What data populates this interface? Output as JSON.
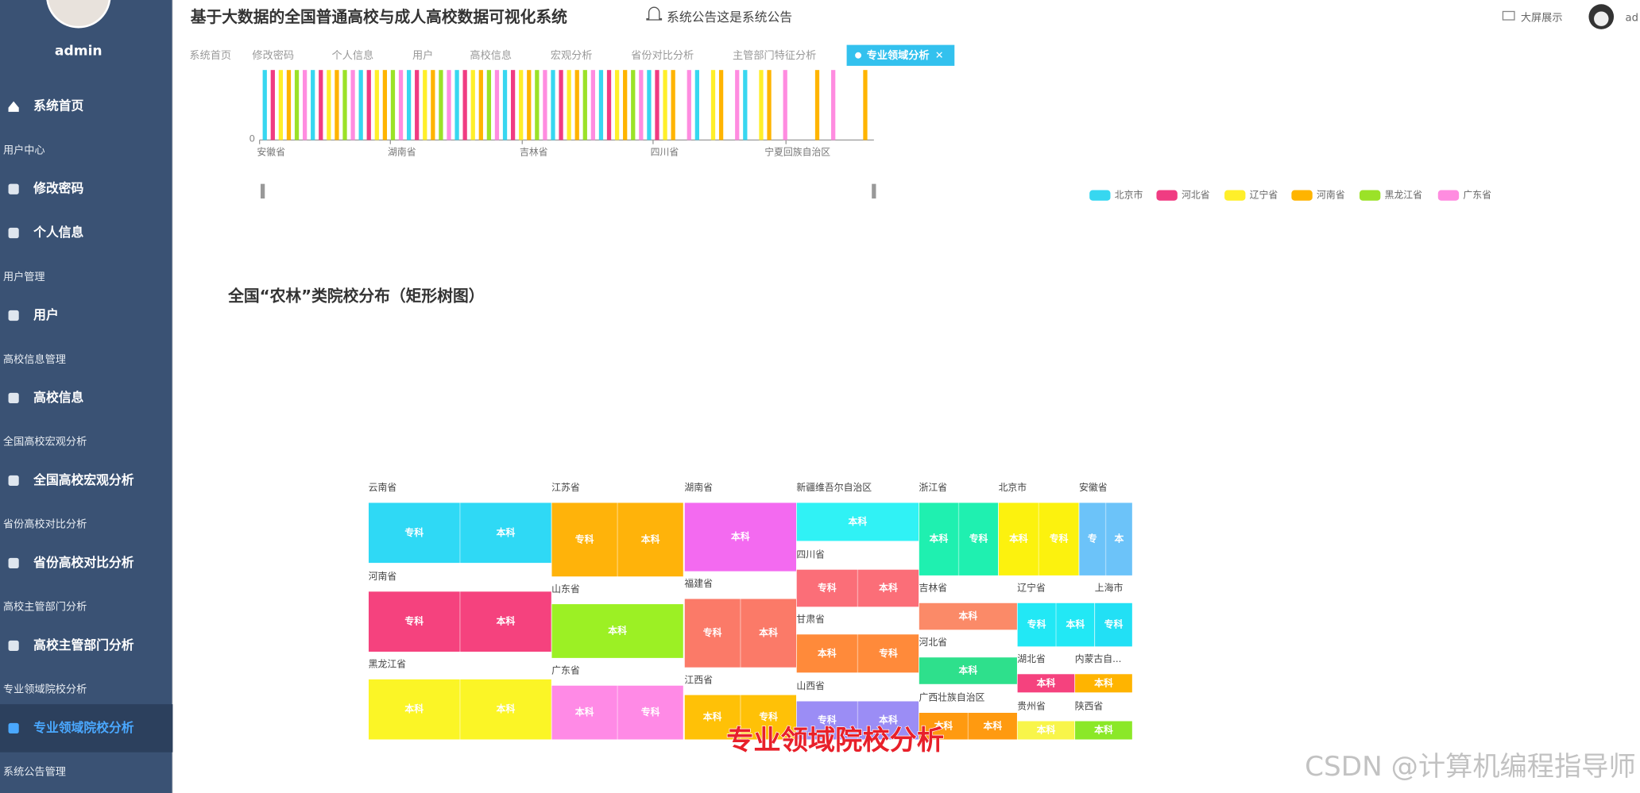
{
  "sidebar": {
    "user": "admin",
    "home": "系统首页",
    "menu": [
      {
        "group": "用户中心",
        "items": [
          "修改密码",
          "个人信息"
        ]
      },
      {
        "group": "用户管理",
        "items": [
          "用户"
        ]
      },
      {
        "group": "高校信息管理",
        "items": [
          "高校信息"
        ]
      },
      {
        "group": "全国高校宏观分析",
        "items": [
          "全国高校宏观分析"
        ]
      },
      {
        "group": "省份高校对比分析",
        "items": [
          "省份高校对比分析"
        ]
      },
      {
        "group": "高校主管部门分析",
        "items": [
          "高校主管部门分析"
        ]
      },
      {
        "group": "专业领域院校分析",
        "items": [
          "专业领域院校分析"
        ]
      },
      {
        "group": "系统公告管理",
        "items": []
      }
    ]
  },
  "header": {
    "title": "基于大数据的全国普通高校与成人高校数据可视化系统",
    "notice": "系统公告这是系统公告",
    "screen": "大屏展示",
    "user": "ad"
  },
  "tabs": {
    "items": [
      "系统首页",
      "修改密码",
      "个人信息",
      "用户",
      "高校信息",
      "宏观分析",
      "省份对比分析",
      "主管部门特征分析",
      "专业领域分析"
    ],
    "active": 8
  },
  "bar_chart": {
    "yticks": [
      0
    ],
    "categories": [
      "安徽省",
      "湖南省",
      "吉林省",
      "四川省",
      "宁夏回族自治区"
    ],
    "legend": [
      {
        "name": "北京市",
        "color": "#37d7f0"
      },
      {
        "name": "河北省",
        "color": "#f03c82"
      },
      {
        "name": "辽宁省",
        "color": "#ffef2a"
      },
      {
        "name": "河南省",
        "color": "#ffb400"
      },
      {
        "name": "黑龙江省",
        "color": "#9be228"
      },
      {
        "name": "广东省",
        "color": "#ff8ce0"
      }
    ]
  },
  "treemap": {
    "title": "全国“农林”类院校分布（矩形树图）",
    "nodes": [
      {
        "name": "云南省",
        "color": "#2fd9f5",
        "children": [
          "专科",
          "本科"
        ]
      },
      {
        "name": "河南省",
        "color": "#f5427e",
        "children": [
          "专科",
          "本科"
        ]
      },
      {
        "name": "黑龙江省",
        "color": "#fbf526",
        "children": [
          "本科",
          "本科"
        ]
      },
      {
        "name": "江苏省",
        "color": "#ffb30a",
        "children": [
          "专科",
          "本科"
        ]
      },
      {
        "name": "山东省",
        "color": "#9cf024",
        "children": [
          "本科"
        ]
      },
      {
        "name": "广东省",
        "color": "#ff8ae6",
        "children": [
          "本科",
          "专科"
        ]
      },
      {
        "name": "湖南省",
        "color": "#f36af0",
        "children": [
          "本科"
        ]
      },
      {
        "name": "福建省",
        "color": "#fb7a68",
        "children": [
          "专科",
          "本科"
        ]
      },
      {
        "name": "江西省",
        "color": "#ffc107",
        "children": [
          "本科",
          "专科"
        ]
      },
      {
        "name": "新疆维吾尔自治区",
        "color": "#30f2f5",
        "children": [
          "本科"
        ]
      },
      {
        "name": "四川省",
        "color": "#fb6e78",
        "children": [
          "专科",
          "本科"
        ]
      },
      {
        "name": "甘肃省",
        "color": "#ff8a3a",
        "children": [
          "本科",
          "专科"
        ]
      },
      {
        "name": "山西省",
        "color": "#9b8df5",
        "children": [
          "专科",
          "本科"
        ]
      },
      {
        "name": "浙江省",
        "color": "#1ff0b0",
        "children": [
          "本科",
          "专科"
        ]
      },
      {
        "name": "北京市",
        "color": "#fcf20e",
        "children": [
          "本科",
          "专科"
        ]
      },
      {
        "name": "安徽省",
        "color": "#6cc3f9",
        "children": [
          "专",
          "本"
        ]
      },
      {
        "name": "吉林省",
        "color": "#fb8a68",
        "children": [
          "本科"
        ]
      },
      {
        "name": "河北省",
        "color": "#2ee08c",
        "children": [
          "本科"
        ]
      },
      {
        "name": "广西壮族自治区",
        "color": "#ff9a10",
        "children": [
          "本科",
          "本科"
        ]
      },
      {
        "name": "辽宁省",
        "color": "#22e8f5",
        "children": [
          "专科",
          "本科"
        ]
      },
      {
        "name": "上海市",
        "color": "#22e0f5",
        "children": [
          "专科"
        ]
      },
      {
        "name": "湖北省",
        "color": "#f5427e",
        "children": [
          "本科"
        ]
      },
      {
        "name": "内蒙古自...",
        "color": "#ffb400",
        "children": [
          "本科"
        ]
      },
      {
        "name": "贵州省",
        "color": "#f8f54a",
        "children": [
          "本科"
        ]
      },
      {
        "name": "陕西省",
        "color": "#8be828",
        "children": [
          "本科"
        ]
      }
    ]
  },
  "caption": "专业领域院校分析",
  "watermark": "CSDN @计算机编程指导师"
}
